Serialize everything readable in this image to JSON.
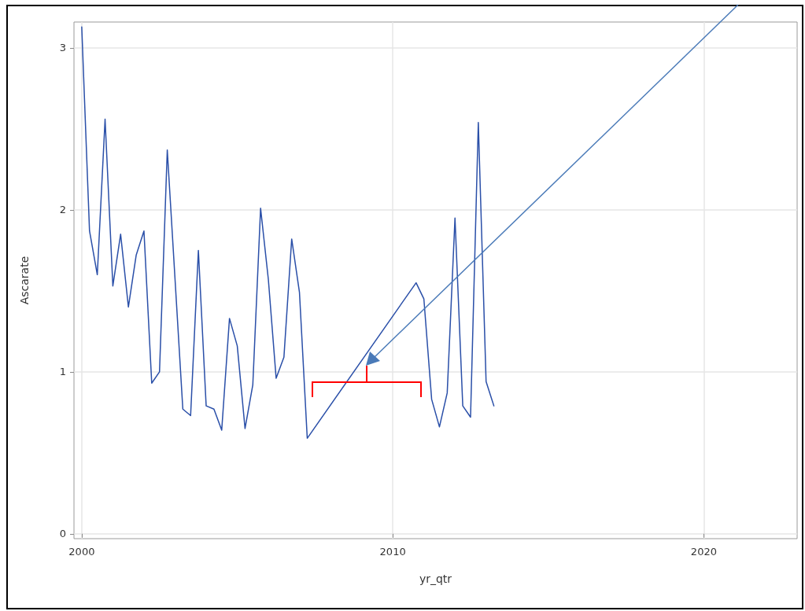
{
  "chart_data": {
    "type": "line",
    "xlabel": "yr_qtr",
    "ylabel": "Ascarate",
    "series": [
      {
        "color": "#2a4fa8",
        "x": [
          2000.0,
          2000.25,
          2000.5,
          2000.75,
          2001.0,
          2001.25,
          2001.5,
          2001.75,
          2002.0,
          2002.25,
          2002.5,
          2002.75,
          2003.25,
          2003.5,
          2003.75,
          2004.0,
          2004.25,
          2004.5,
          2004.75,
          2005.0,
          2005.25,
          2005.5,
          2005.75,
          2006.0,
          2006.25,
          2006.5,
          2006.75,
          2007.0,
          2007.25,
          2010.75,
          2011.0,
          2011.25,
          2011.5,
          2011.75,
          2012.0,
          2012.25,
          2012.5,
          2012.75,
          2013.0,
          2013.25
        ],
        "values": [
          3.13,
          1.87,
          1.6,
          2.56,
          1.53,
          1.85,
          1.4,
          1.72,
          1.87,
          0.93,
          1.0,
          2.37,
          0.77,
          0.73,
          1.75,
          0.79,
          0.77,
          0.64,
          1.33,
          1.16,
          0.65,
          0.92,
          2.01,
          1.57,
          0.96,
          1.09,
          1.82,
          1.49,
          0.59,
          1.55,
          1.45,
          0.83,
          0.66,
          0.87,
          1.95,
          0.79,
          0.72,
          2.54,
          0.94,
          0.79
        ]
      }
    ],
    "xlim": [
      1999.75,
      2023
    ],
    "xticks": [
      2000,
      2010,
      2020
    ],
    "ylim": [
      -0.03,
      3.16
    ],
    "yticks": [
      0,
      1,
      2,
      3
    ],
    "grid": true,
    "marker": "none",
    "line_style": "solid"
  }
}
